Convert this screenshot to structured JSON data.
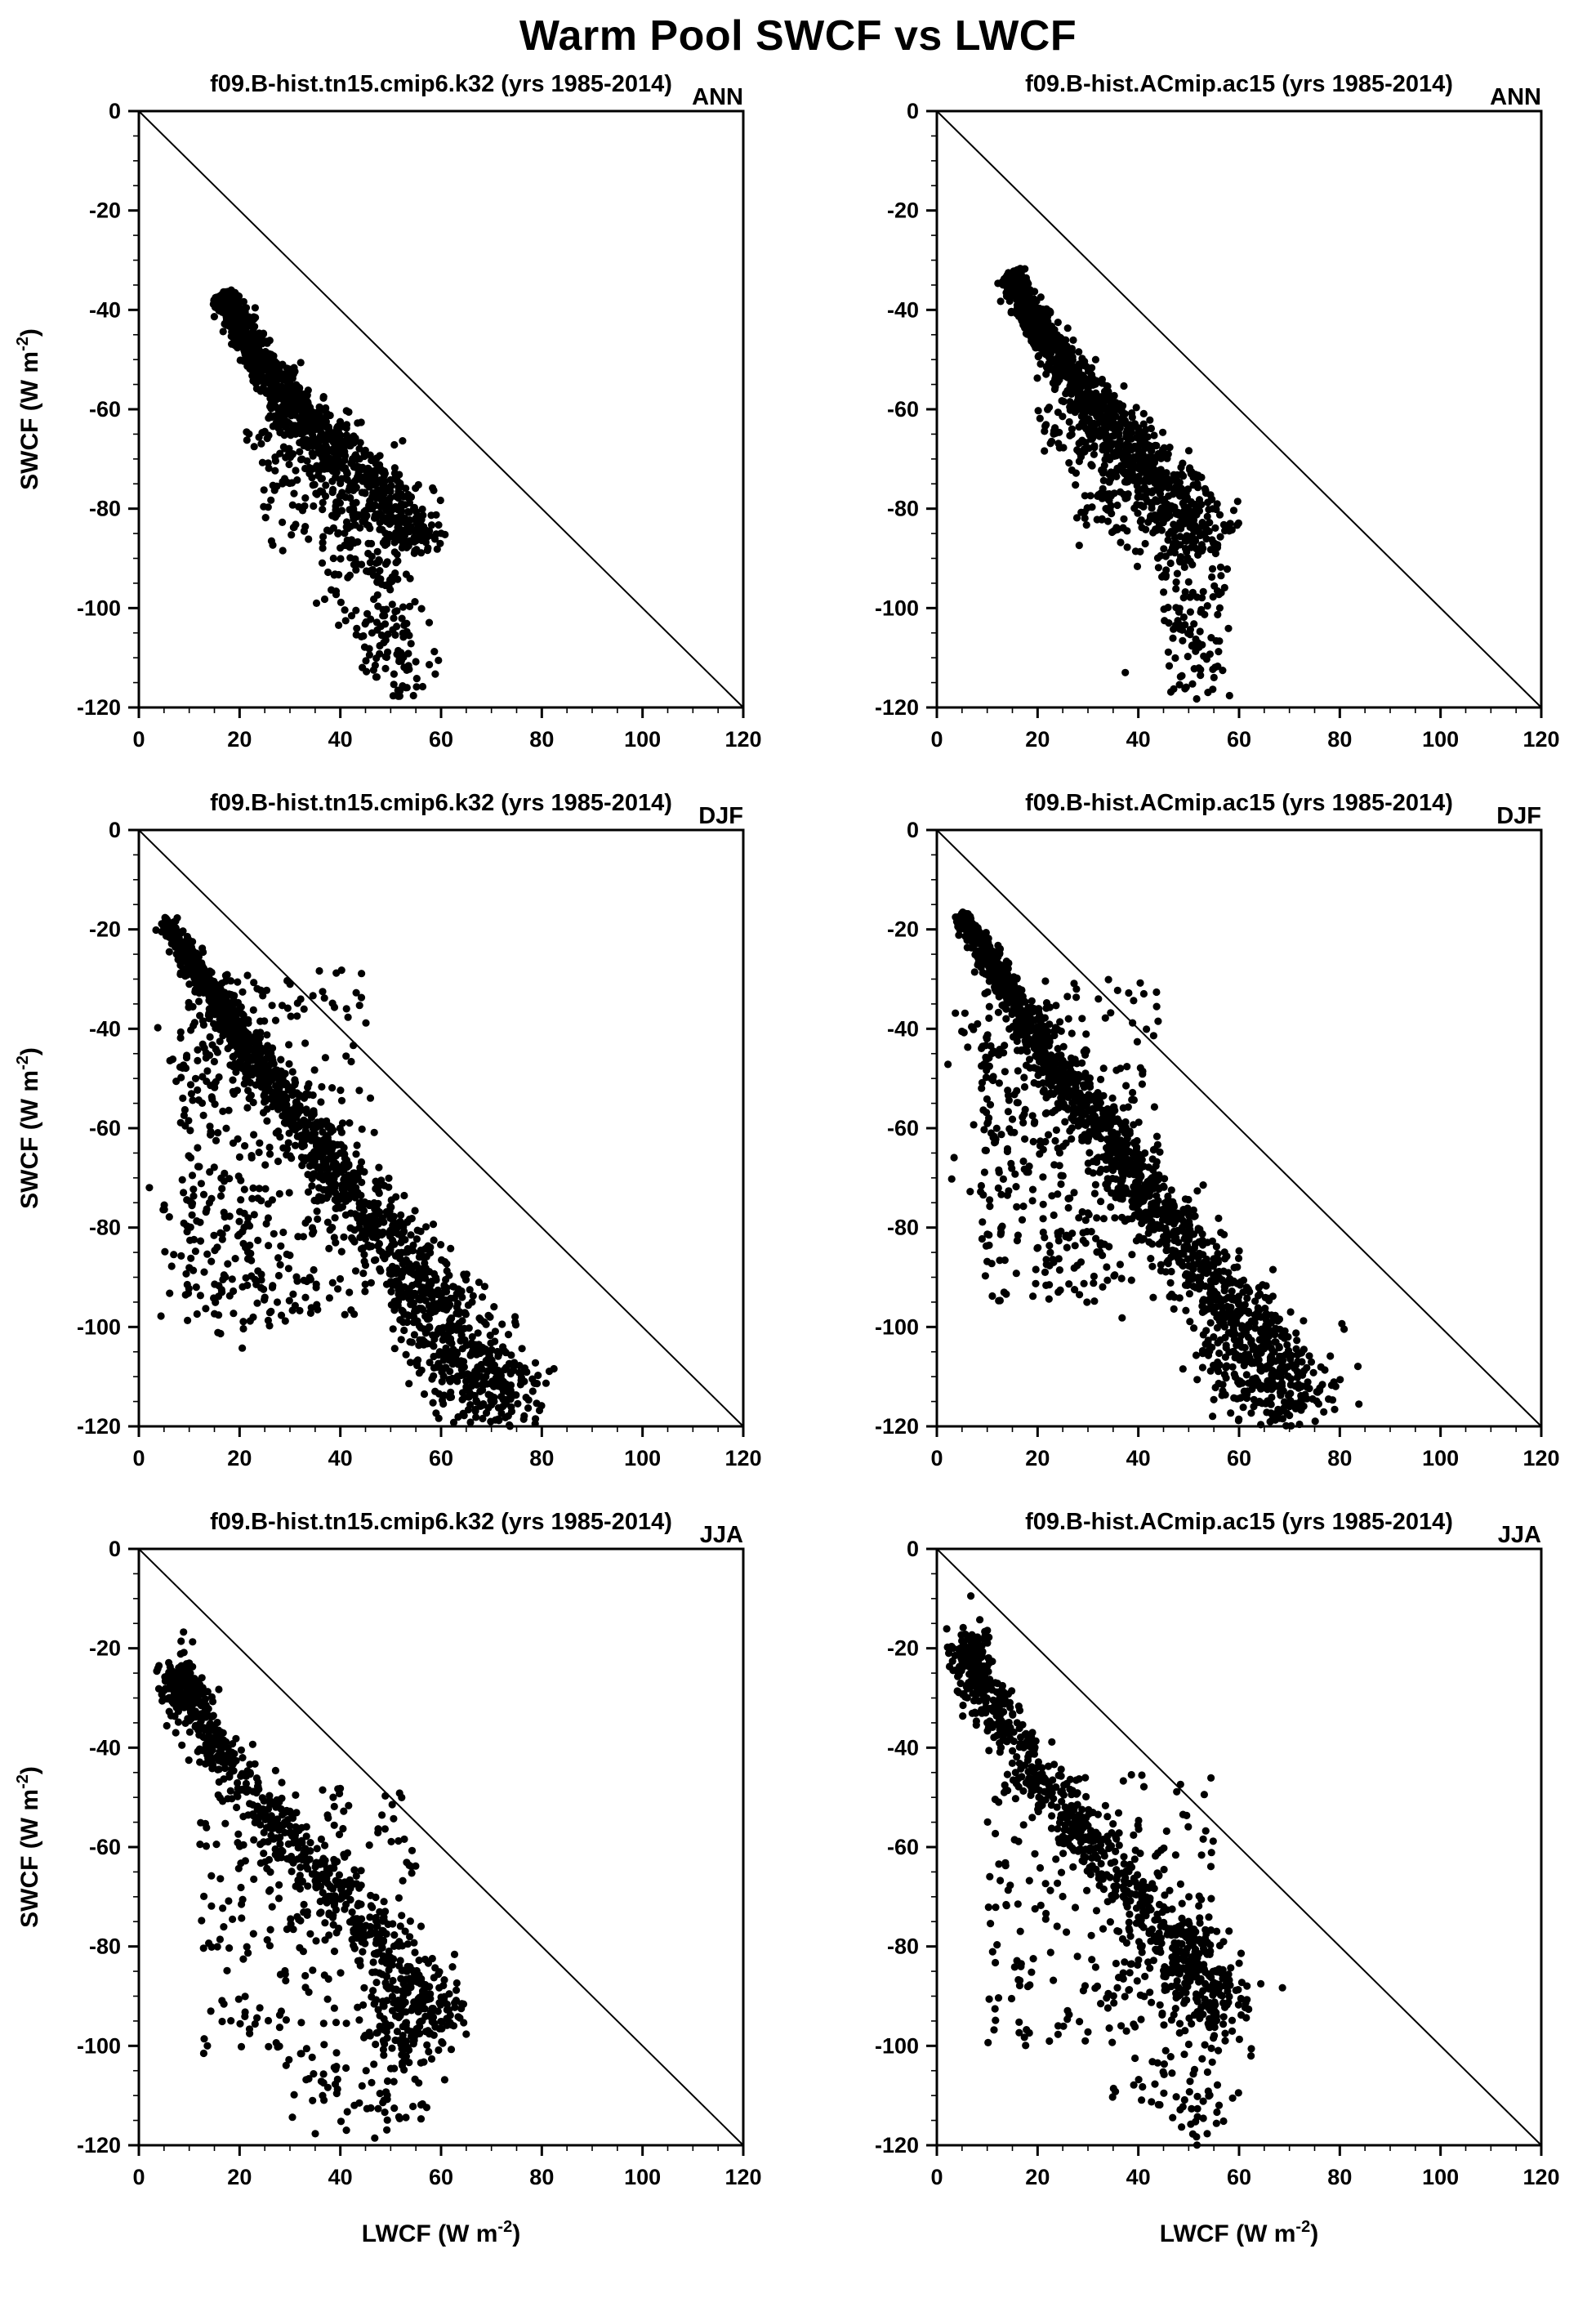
{
  "page": {
    "title": "Warm Pool SWCF vs LWCF"
  },
  "axis_labels": {
    "x": {
      "pre": "LWCF (W m",
      "sup": "-2",
      "post": ")"
    },
    "y": {
      "pre": "SWCF (W m",
      "sup": "-2",
      "post": ")"
    }
  },
  "style": {
    "marker_color": "#000000",
    "marker_radius": 4.6,
    "frame_color": "#000000",
    "diagonal_color": "#000000"
  },
  "chart_data": [
    {
      "type": "scatter",
      "col": 0,
      "row": 0,
      "seed": 101,
      "title": "f09.B-hist.tn15.cmip6.k32 (yrs 1985-2014)",
      "season": "ANN",
      "xlim": [
        0,
        120
      ],
      "ylim": [
        -120,
        0
      ],
      "xticks": [
        0,
        20,
        40,
        60,
        80,
        100,
        120
      ],
      "yticks": [
        0,
        -20,
        -40,
        -60,
        -80,
        -100,
        -120
      ],
      "minor_step": 5,
      "diagonal": {
        "from": [
          0,
          0
        ],
        "to": [
          120,
          -120
        ]
      },
      "show_y_title": true,
      "show_x_title": false,
      "clusters": [
        {
          "type": "band",
          "ctrl": [
            [
              17,
              -37
            ],
            [
              21,
              -45
            ],
            [
              26,
              -53
            ],
            [
              33,
              -62
            ],
            [
              41,
              -70
            ],
            [
              50,
              -79
            ],
            [
              56,
              -88
            ]
          ],
          "n": 1350,
          "s0": 1.0,
          "s1": 4.0,
          "bias": 1.7
        },
        {
          "type": "band",
          "ctrl": [
            [
              24,
              -63
            ],
            [
              32,
              -73
            ],
            [
              42,
              -83
            ],
            [
              50,
              -91
            ]
          ],
          "n": 130,
          "s0": 2.5,
          "s1": 4.5,
          "bias": 1.0
        },
        {
          "type": "blob",
          "cx": 50,
          "cy": -103,
          "sx": 4,
          "sy": 7,
          "n": 80
        },
        {
          "type": "blob",
          "cx": 52,
          "cy": -114,
          "sx": 3,
          "sy": 4,
          "n": 28
        },
        {
          "type": "spray",
          "x0": 24,
          "x1": 40,
          "y0": -92,
          "y1": -68,
          "n": 40
        },
        {
          "type": "blob",
          "cx": 43,
          "cy": -95,
          "sx": 4,
          "sy": 4,
          "n": 30
        }
      ]
    },
    {
      "type": "scatter",
      "col": 1,
      "row": 0,
      "seed": 102,
      "title": "f09.B-hist.ACmip.ac15 (yrs 1985-2014)",
      "season": "ANN",
      "xlim": [
        0,
        120
      ],
      "ylim": [
        -120,
        0
      ],
      "xticks": [
        0,
        20,
        40,
        60,
        80,
        100,
        120
      ],
      "yticks": [
        0,
        -20,
        -40,
        -60,
        -80,
        -100,
        -120
      ],
      "minor_step": 5,
      "diagonal": {
        "from": [
          0,
          0
        ],
        "to": [
          120,
          -120
        ]
      },
      "show_y_title": false,
      "show_x_title": false,
      "clusters": [
        {
          "type": "band",
          "ctrl": [
            [
              15,
              -33
            ],
            [
              19,
              -42
            ],
            [
              25,
              -51
            ],
            [
              32,
              -60
            ],
            [
              40,
              -69
            ],
            [
              48,
              -78
            ],
            [
              54,
              -88
            ]
          ],
          "n": 1350,
          "s0": 1.0,
          "s1": 4.2,
          "bias": 1.7
        },
        {
          "type": "band",
          "ctrl": [
            [
              22,
              -60
            ],
            [
              30,
              -70
            ],
            [
              40,
              -80
            ],
            [
              48,
              -92
            ]
          ],
          "n": 120,
          "s0": 2.5,
          "s1": 4.5,
          "bias": 1.0
        },
        {
          "type": "blob",
          "cx": 50,
          "cy": -101,
          "sx": 4,
          "sy": 7,
          "n": 80
        },
        {
          "type": "blob",
          "cx": 53,
          "cy": -113,
          "sx": 3.5,
          "sy": 5,
          "n": 30
        },
        {
          "type": "spray",
          "x0": 26,
          "x1": 42,
          "y0": -88,
          "y1": -66,
          "n": 35
        },
        {
          "type": "blob",
          "cx": 36,
          "cy": -80,
          "sx": 3,
          "sy": 4,
          "n": 25
        }
      ]
    },
    {
      "type": "scatter",
      "col": 0,
      "row": 1,
      "seed": 103,
      "title": "f09.B-hist.tn15.cmip6.k32 (yrs 1985-2014)",
      "season": "DJF",
      "xlim": [
        0,
        120
      ],
      "ylim": [
        -120,
        0
      ],
      "xticks": [
        0,
        20,
        40,
        60,
        80,
        100,
        120
      ],
      "yticks": [
        0,
        -20,
        -40,
        -60,
        -80,
        -100,
        -120
      ],
      "minor_step": 5,
      "diagonal": {
        "from": [
          0,
          0
        ],
        "to": [
          120,
          -120
        ]
      },
      "show_y_title": true,
      "show_x_title": false,
      "clusters": [
        {
          "type": "band",
          "ctrl": [
            [
              5,
              -18
            ],
            [
              14,
              -32
            ],
            [
              23,
              -46
            ],
            [
              32,
              -59
            ],
            [
              41,
              -71
            ],
            [
              50,
              -83
            ],
            [
              59,
              -95
            ],
            [
              68,
              -107
            ],
            [
              75,
              -118
            ]
          ],
          "n": 1500,
          "s0": 0.8,
          "s1": 5.0,
          "bias": 1.1
        },
        {
          "type": "spray",
          "x0": 8,
          "x1": 46,
          "y0": -98,
          "y1": -28,
          "n": 300
        },
        {
          "type": "blob",
          "cx": 14,
          "cy": -80,
          "sx": 5,
          "sy": 9,
          "n": 50
        },
        {
          "type": "blob",
          "cx": 24,
          "cy": -94,
          "sx": 5,
          "sy": 6,
          "n": 35
        },
        {
          "type": "band",
          "ctrl": [
            [
              52,
              -100
            ],
            [
              62,
              -110
            ],
            [
              70,
              -118
            ]
          ],
          "n": 110,
          "s0": 3,
          "s1": 5,
          "bias": 1.0
        },
        {
          "type": "blob",
          "cx": 10,
          "cy": -50,
          "sx": 3,
          "sy": 8,
          "n": 40
        }
      ]
    },
    {
      "type": "scatter",
      "col": 1,
      "row": 1,
      "seed": 104,
      "title": "f09.B-hist.ACmip.ac15 (yrs 1985-2014)",
      "season": "DJF",
      "xlim": [
        0,
        120
      ],
      "ylim": [
        -120,
        0
      ],
      "xticks": [
        0,
        20,
        40,
        60,
        80,
        100,
        120
      ],
      "yticks": [
        0,
        -20,
        -40,
        -60,
        -80,
        -100,
        -120
      ],
      "minor_step": 5,
      "diagonal": {
        "from": [
          0,
          0
        ],
        "to": [
          120,
          -120
        ]
      },
      "show_y_title": false,
      "show_x_title": false,
      "clusters": [
        {
          "type": "band",
          "ctrl": [
            [
              5,
              -17
            ],
            [
              14,
              -32
            ],
            [
              23,
              -47
            ],
            [
              32,
              -60
            ],
            [
              41,
              -73
            ],
            [
              50,
              -85
            ],
            [
              59,
              -97
            ],
            [
              68,
              -108
            ],
            [
              74,
              -117
            ]
          ],
          "n": 1500,
          "s0": 0.8,
          "s1": 5.0,
          "bias": 1.1
        },
        {
          "type": "spray",
          "x0": 8,
          "x1": 44,
          "y0": -95,
          "y1": -30,
          "n": 260
        },
        {
          "type": "blob",
          "cx": 12,
          "cy": -67,
          "sx": 4,
          "sy": 9,
          "n": 45
        },
        {
          "type": "blob",
          "cx": 28,
          "cy": -85,
          "sx": 6,
          "sy": 7,
          "n": 40
        },
        {
          "type": "band",
          "ctrl": [
            [
              52,
              -102
            ],
            [
              62,
              -112
            ],
            [
              70,
              -118
            ]
          ],
          "n": 100,
          "s0": 3,
          "s1": 5,
          "bias": 1.0
        },
        {
          "type": "blob",
          "cx": 9,
          "cy": -45,
          "sx": 2.5,
          "sy": 7,
          "n": 35
        }
      ]
    },
    {
      "type": "scatter",
      "col": 0,
      "row": 2,
      "seed": 105,
      "title": "f09.B-hist.tn15.cmip6.k32 (yrs 1985-2014)",
      "season": "JJA",
      "xlim": [
        0,
        120
      ],
      "ylim": [
        -120,
        0
      ],
      "xticks": [
        0,
        20,
        40,
        60,
        80,
        100,
        120
      ],
      "yticks": [
        0,
        -20,
        -40,
        -60,
        -80,
        -100,
        -120
      ],
      "minor_step": 5,
      "diagonal": {
        "from": [
          0,
          0
        ],
        "to": [
          120,
          -120
        ]
      },
      "show_y_title": true,
      "show_x_title": true,
      "clusters": [
        {
          "type": "band",
          "ctrl": [
            [
              7,
              -24
            ],
            [
              11,
              -32
            ],
            [
              17,
              -42
            ],
            [
              25,
              -53
            ],
            [
              33,
              -63
            ],
            [
              41,
              -71
            ],
            [
              48,
              -79
            ],
            [
              54,
              -87
            ],
            [
              60,
              -97
            ]
          ],
          "n": 650,
          "s0": 1.8,
          "s1": 3.5,
          "bias": 1.2
        },
        {
          "type": "blob",
          "cx": 8,
          "cy": -28,
          "sx": 2,
          "sy": 4,
          "n": 70
        },
        {
          "type": "spray",
          "x0": 12,
          "x1": 55,
          "y0": -102,
          "y1": -48,
          "n": 240
        },
        {
          "type": "blob",
          "cx": 53,
          "cy": -99,
          "sx": 5,
          "sy": 6,
          "n": 90
        },
        {
          "type": "band",
          "ctrl": [
            [
              30,
              -104
            ],
            [
              42,
              -110
            ],
            [
              52,
              -115
            ]
          ],
          "n": 55,
          "s0": 4,
          "s1": 5,
          "bias": 1.0
        },
        {
          "type": "blob",
          "cx": 58,
          "cy": -92,
          "sx": 3,
          "sy": 5,
          "n": 40
        }
      ]
    },
    {
      "type": "scatter",
      "col": 1,
      "row": 2,
      "seed": 106,
      "title": "f09.B-hist.ACmip.ac15 (yrs 1985-2014)",
      "season": "JJA",
      "xlim": [
        0,
        120
      ],
      "ylim": [
        -120,
        0
      ],
      "xticks": [
        0,
        20,
        40,
        60,
        80,
        100,
        120
      ],
      "yticks": [
        0,
        -20,
        -40,
        -60,
        -80,
        -100,
        -120
      ],
      "minor_step": 5,
      "diagonal": {
        "from": [
          0,
          0
        ],
        "to": [
          120,
          -120
        ]
      },
      "show_y_title": false,
      "show_x_title": true,
      "clusters": [
        {
          "type": "band",
          "ctrl": [
            [
              5,
              -18
            ],
            [
              9,
              -27
            ],
            [
              15,
              -38
            ],
            [
              23,
              -50
            ],
            [
              31,
              -61
            ],
            [
              39,
              -70
            ],
            [
              46,
              -78
            ],
            [
              53,
              -86
            ],
            [
              59,
              -94
            ]
          ],
          "n": 650,
          "s0": 1.8,
          "s1": 3.5,
          "bias": 1.2
        },
        {
          "type": "blob",
          "cx": 7,
          "cy": -24,
          "sx": 2,
          "sy": 4,
          "n": 60
        },
        {
          "type": "spray",
          "x0": 10,
          "x1": 55,
          "y0": -100,
          "y1": -45,
          "n": 240
        },
        {
          "type": "blob",
          "cx": 50,
          "cy": -84,
          "sx": 5,
          "sy": 6,
          "n": 110
        },
        {
          "type": "band",
          "ctrl": [
            [
              38,
              -106
            ],
            [
              48,
              -111
            ],
            [
              57,
              -114
            ]
          ],
          "n": 55,
          "s0": 4,
          "s1": 5,
          "bias": 1.0
        },
        {
          "type": "blob",
          "cx": 57,
          "cy": -95,
          "sx": 3,
          "sy": 4,
          "n": 40
        }
      ]
    }
  ]
}
